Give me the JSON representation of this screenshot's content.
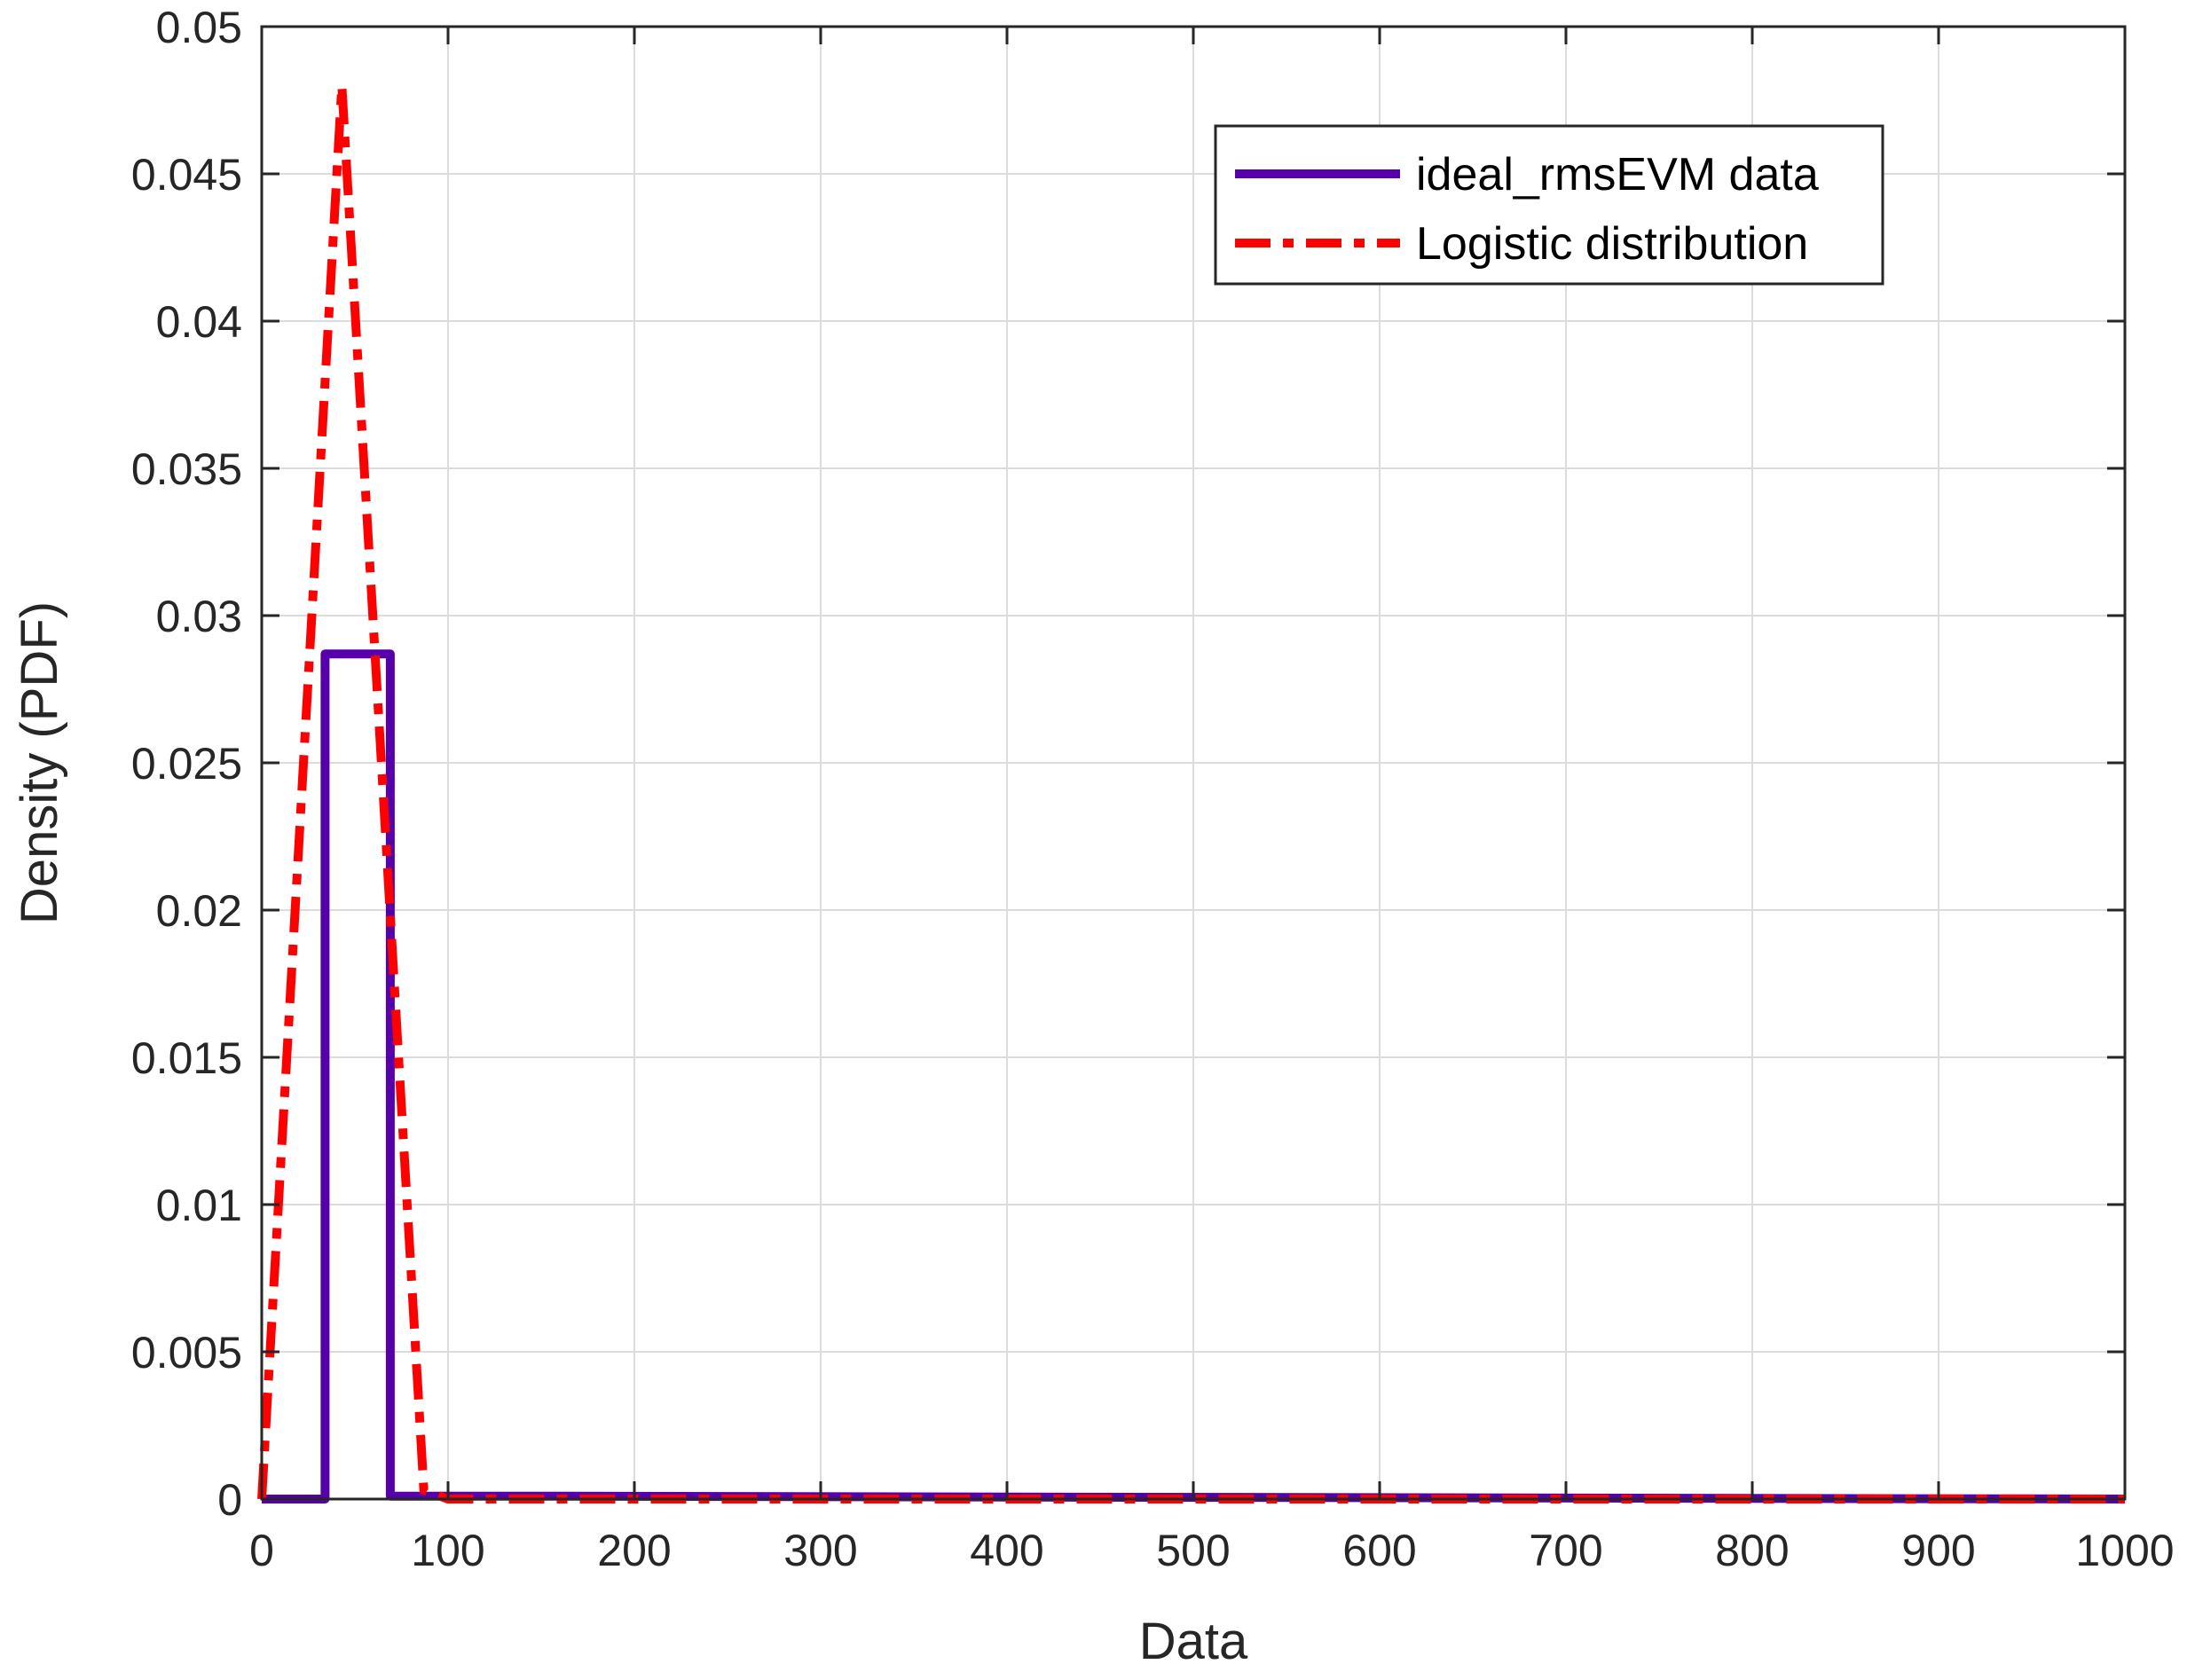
{
  "chart_data": {
    "type": "line",
    "title": "",
    "xlabel": "Data",
    "ylabel": "Density (PDF)",
    "xlim": [
      0,
      1000
    ],
    "ylim": [
      0,
      0.05
    ],
    "grid": true,
    "legend_position": "top-right",
    "xticks": [
      0,
      100,
      200,
      300,
      400,
      500,
      600,
      700,
      800,
      900,
      1000
    ],
    "xtick_labels": [
      "0",
      "100",
      "200",
      "300",
      "400",
      "500",
      "600",
      "700",
      "800",
      "900",
      "1000"
    ],
    "yticks": [
      0,
      0.005,
      0.01,
      0.015,
      0.02,
      0.025,
      0.03,
      0.035,
      0.04,
      0.045,
      0.05
    ],
    "ytick_labels": [
      "0",
      "0.005",
      "0.01",
      "0.015",
      "0.02",
      "0.025",
      "0.03",
      "0.035",
      "0.04",
      "0.045",
      "0.05"
    ],
    "series": [
      {
        "name": "ideal_rmsEVM data",
        "style": "solid",
        "color": "#5500aa",
        "x": [
          0,
          34,
          34,
          69,
          69,
          140,
          1000
        ],
        "y": [
          0,
          0,
          0.0287,
          0.0287,
          0.0001,
          0.0001,
          0
        ]
      },
      {
        "name": "Logistic distribution",
        "style": "dash-dot",
        "color": "#ff0000",
        "x": [
          0,
          43,
          87,
          100,
          1000
        ],
        "y": [
          0,
          0.048,
          0.0003,
          0,
          0
        ]
      }
    ]
  }
}
